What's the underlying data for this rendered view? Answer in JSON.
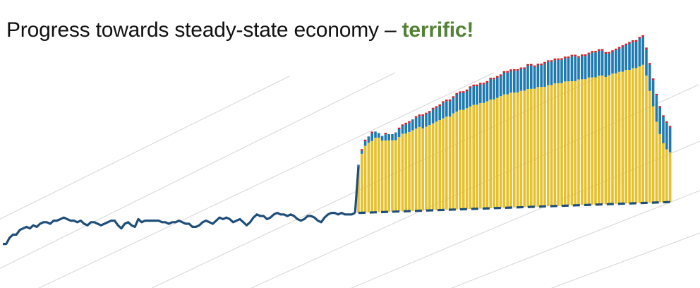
{
  "title": {
    "text": "Progress towards steady-state economy –",
    "highlight": "terrific!",
    "highlight_color": "#538135"
  },
  "colors": {
    "line": "#1f4e79",
    "yellow": "#e5c12d",
    "blue": "#1f7ab0",
    "red": "#c9252c",
    "grid": "#d6d6d6"
  },
  "chart_data": {
    "type": "area",
    "title": "Progress towards steady-state economy – terrific!",
    "xlabel": "",
    "ylabel": "",
    "grid": "diagonal",
    "legend": "none",
    "ylim": [
      0,
      100
    ],
    "history": {
      "x": [
        0,
        1,
        2,
        3,
        4,
        5,
        6,
        7,
        8,
        9,
        10,
        11,
        12,
        13,
        14,
        15,
        16,
        17,
        18,
        19,
        20,
        21,
        22,
        23,
        24,
        25,
        26,
        27,
        28,
        29,
        30,
        31,
        32,
        33,
        34,
        35,
        36,
        37,
        38,
        39,
        40,
        41,
        42,
        43,
        44,
        45,
        46,
        47,
        48,
        49,
        50,
        51,
        52,
        53,
        54,
        55,
        56,
        57,
        58,
        59,
        60,
        61,
        62,
        63,
        64,
        65,
        66,
        67,
        68,
        69,
        70,
        71,
        72,
        73,
        74,
        75,
        76,
        77,
        78,
        79,
        80,
        81,
        82,
        83,
        84,
        85,
        86,
        87,
        88,
        89,
        90,
        91,
        92,
        93,
        94,
        95,
        96,
        97,
        98,
        99,
        100,
        101,
        102,
        103,
        104
      ],
      "values": [
        7,
        7,
        11,
        13,
        13,
        16,
        17,
        18,
        17,
        19,
        18,
        20,
        21,
        21,
        20,
        22,
        22,
        23,
        24,
        23,
        22,
        22,
        21,
        22,
        20,
        19,
        21,
        21,
        20,
        19,
        20,
        21,
        22,
        22,
        19,
        17,
        20,
        21,
        19,
        18,
        23,
        21,
        22,
        22,
        22,
        22,
        22,
        21,
        21,
        20,
        21,
        21,
        22,
        21,
        20,
        20,
        18,
        18,
        19,
        21,
        22,
        21,
        20,
        22,
        24,
        23,
        24,
        23,
        21,
        22,
        23,
        21,
        19,
        21,
        24,
        26,
        25,
        25,
        23,
        24,
        26,
        27,
        26,
        26,
        25,
        26,
        25,
        23,
        22,
        23,
        25,
        25,
        24,
        22,
        21,
        24,
        26,
        27,
        27,
        26,
        27,
        26,
        26,
        26,
        27
      ]
    },
    "projection": {
      "x": [
        105,
        106,
        107,
        108,
        109,
        110,
        111,
        112,
        113,
        114,
        115,
        116,
        117,
        118,
        119,
        120,
        121,
        122,
        123,
        124,
        125,
        126,
        127,
        128,
        129,
        130,
        131,
        132,
        133,
        134,
        135,
        136,
        137,
        138,
        139,
        140,
        141,
        142,
        143,
        144,
        145,
        146,
        147,
        148,
        149,
        150,
        151,
        152,
        153,
        154,
        155,
        156,
        157,
        158,
        159,
        160,
        161,
        162,
        163,
        164,
        165,
        166,
        167,
        168,
        169,
        170,
        171,
        172,
        173,
        174,
        175,
        176,
        177,
        178,
        179,
        180,
        181,
        182,
        183,
        184,
        185,
        186,
        187,
        188,
        189,
        190,
        191,
        192,
        193,
        194,
        195,
        196,
        197
      ],
      "series": [
        {
          "name": "",
          "color": "yellow",
          "values": [
            30,
            38,
            43,
            45,
            46,
            48,
            48,
            46,
            46,
            46,
            46,
            46,
            48,
            50,
            50,
            51,
            52,
            53,
            54,
            53,
            54,
            55,
            56,
            57,
            58,
            59,
            60,
            60,
            62,
            63,
            64,
            64,
            65,
            66,
            67,
            67,
            68,
            68,
            69,
            70,
            70,
            71,
            72,
            73,
            73,
            74,
            74,
            74,
            75,
            75,
            76,
            76,
            76,
            77,
            77,
            77,
            78,
            78,
            79,
            79,
            79,
            80,
            80,
            80,
            80,
            81,
            81,
            81,
            82,
            82,
            82,
            83,
            83,
            82,
            83,
            84,
            84,
            85,
            85,
            86,
            86,
            87,
            87,
            88,
            89,
            82,
            72,
            62,
            52,
            44,
            38,
            34,
            32
          ]
        },
        {
          "name": "",
          "color": "blue",
          "values": [
            1,
            2,
            3,
            4,
            5,
            4,
            3,
            3,
            4,
            4,
            4,
            5,
            5,
            5,
            6,
            6,
            7,
            7,
            7,
            8,
            8,
            8,
            9,
            9,
            9,
            10,
            10,
            10,
            10,
            11,
            11,
            11,
            11,
            12,
            12,
            12,
            12,
            12,
            12,
            13,
            13,
            13,
            13,
            14,
            14,
            14,
            14,
            14,
            14,
            14,
            15,
            15,
            14,
            14,
            14,
            15,
            15,
            15,
            15,
            15,
            15,
            15,
            15,
            16,
            16,
            14,
            15,
            15,
            15,
            16,
            16,
            16,
            16,
            15,
            14,
            14,
            15,
            15,
            16,
            16,
            17,
            17,
            17,
            18,
            18,
            17,
            17,
            17,
            17,
            17,
            17,
            17,
            16
          ]
        },
        {
          "name": "",
          "color": "red",
          "values": [
            0,
            1,
            1,
            0,
            1,
            0,
            0,
            0,
            1,
            0,
            0,
            0,
            1,
            1,
            1,
            1,
            0,
            1,
            1,
            1,
            1,
            1,
            1,
            1,
            1,
            1,
            1,
            1,
            1,
            1,
            1,
            1,
            1,
            1,
            1,
            1,
            1,
            1,
            1,
            1,
            1,
            1,
            1,
            1,
            1,
            1,
            1,
            1,
            1,
            1,
            1,
            1,
            1,
            1,
            1,
            1,
            1,
            1,
            1,
            1,
            1,
            1,
            1,
            1,
            1,
            1,
            1,
            1,
            1,
            1,
            1,
            1,
            1,
            1,
            1,
            1,
            1,
            1,
            1,
            1,
            1,
            1,
            1,
            1,
            1,
            1,
            1,
            1,
            1,
            1,
            1,
            1,
            1
          ]
        }
      ],
      "baseline": {
        "x": [
          105,
          197
        ],
        "values": [
          27,
          34
        ]
      }
    }
  }
}
